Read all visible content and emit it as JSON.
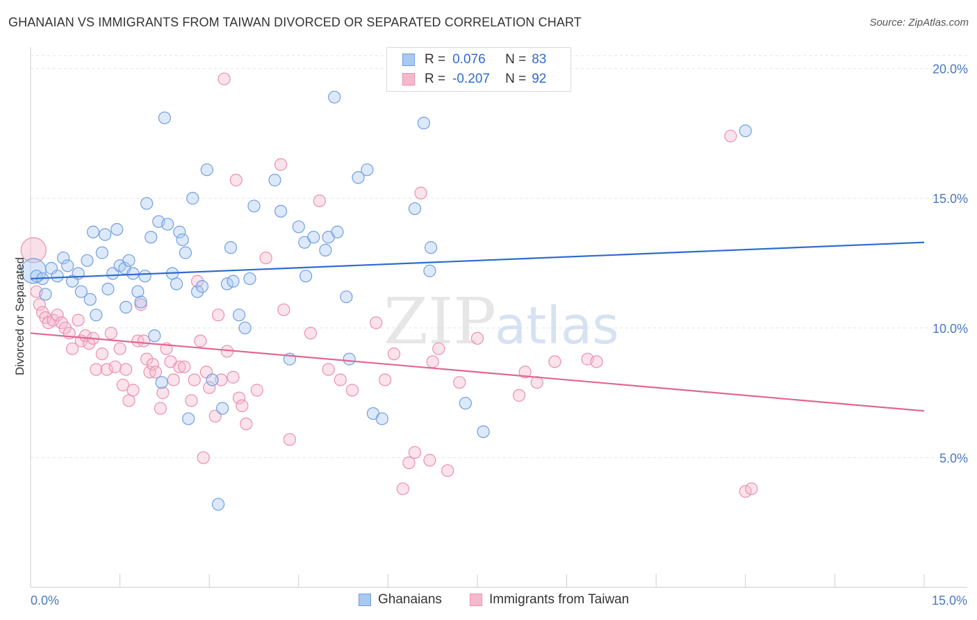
{
  "title": "GHANAIAN VS IMMIGRANTS FROM TAIWAN DIVORCED OR SEPARATED CORRELATION CHART",
  "source": "Source: ZipAtlas.com",
  "legend_top": {
    "rows": [
      {
        "r_label": "R =",
        "r_value": "0.076",
        "n_label": "N =",
        "n_value": "83"
      },
      {
        "r_label": "R =",
        "r_value": "-0.207",
        "n_label": "N =",
        "n_value": "92"
      }
    ]
  },
  "legend_bottom": {
    "items": [
      "Ghanaians",
      "Immigrants from Taiwan"
    ]
  },
  "watermark": {
    "zip": "ZIP",
    "atlas": "atlas"
  },
  "colors": {
    "blue_fill": "#a9c8f2",
    "blue_stroke": "#6f9ee0",
    "blue_line": "#2d6bcf",
    "pink_fill": "#f6b9cc",
    "pink_stroke": "#ea8fae",
    "pink_line": "#e06692",
    "tick_text": "#4a78c2",
    "grid": "#e3e3e3"
  },
  "chart_data": {
    "type": "scatter",
    "title": "GHANAIAN VS IMMIGRANTS FROM TAIWAN DIVORCED OR SEPARATED CORRELATION CHART",
    "xlabel": "",
    "ylabel": "Divorced or Separated",
    "xlim": [
      0,
      15
    ],
    "ylim": [
      0,
      20.5
    ],
    "x_ticks": [
      0,
      15
    ],
    "x_tick_labels": [
      "0.0%",
      "15.0%"
    ],
    "y_ticks": [
      5,
      10,
      15,
      20
    ],
    "y_tick_labels": [
      "5.0%",
      "10.0%",
      "15.0%",
      "20.0%"
    ],
    "grid": true,
    "legend": "top-center",
    "series": [
      {
        "name": "Ghanaians",
        "trend": {
          "x": [
            0,
            15
          ],
          "y": [
            11.9,
            13.3
          ]
        },
        "points": [
          {
            "x": 0.05,
            "y": 12.2,
            "big": true
          },
          {
            "x": 0.1,
            "y": 12.0
          },
          {
            "x": 0.2,
            "y": 11.9
          },
          {
            "x": 0.25,
            "y": 11.3
          },
          {
            "x": 0.35,
            "y": 12.3
          },
          {
            "x": 0.45,
            "y": 12.0
          },
          {
            "x": 0.55,
            "y": 12.7
          },
          {
            "x": 0.62,
            "y": 12.4
          },
          {
            "x": 0.7,
            "y": 11.8
          },
          {
            "x": 0.8,
            "y": 12.1
          },
          {
            "x": 0.85,
            "y": 11.4
          },
          {
            "x": 0.95,
            "y": 12.6
          },
          {
            "x": 1.0,
            "y": 11.1
          },
          {
            "x": 1.05,
            "y": 13.7
          },
          {
            "x": 1.1,
            "y": 10.5
          },
          {
            "x": 1.2,
            "y": 12.9
          },
          {
            "x": 1.25,
            "y": 13.6
          },
          {
            "x": 1.3,
            "y": 11.5
          },
          {
            "x": 1.38,
            "y": 12.1
          },
          {
            "x": 1.45,
            "y": 13.8
          },
          {
            "x": 1.5,
            "y": 12.4
          },
          {
            "x": 1.58,
            "y": 12.3
          },
          {
            "x": 1.6,
            "y": 10.8
          },
          {
            "x": 1.65,
            "y": 12.6
          },
          {
            "x": 1.72,
            "y": 12.1
          },
          {
            "x": 1.8,
            "y": 11.4
          },
          {
            "x": 1.85,
            "y": 11.0
          },
          {
            "x": 1.92,
            "y": 12.0
          },
          {
            "x": 1.95,
            "y": 14.8
          },
          {
            "x": 2.02,
            "y": 13.5
          },
          {
            "x": 2.08,
            "y": 9.7
          },
          {
            "x": 2.15,
            "y": 14.1
          },
          {
            "x": 2.2,
            "y": 7.9
          },
          {
            "x": 2.25,
            "y": 18.1
          },
          {
            "x": 2.3,
            "y": 14.0
          },
          {
            "x": 2.38,
            "y": 12.1
          },
          {
            "x": 2.45,
            "y": 11.7
          },
          {
            "x": 2.5,
            "y": 13.7
          },
          {
            "x": 2.55,
            "y": 13.4
          },
          {
            "x": 2.6,
            "y": 12.9
          },
          {
            "x": 2.65,
            "y": 6.5
          },
          {
            "x": 2.72,
            "y": 15.0
          },
          {
            "x": 2.8,
            "y": 11.4
          },
          {
            "x": 2.88,
            "y": 11.6
          },
          {
            "x": 2.96,
            "y": 16.1
          },
          {
            "x": 3.05,
            "y": 8.0
          },
          {
            "x": 3.15,
            "y": 3.2
          },
          {
            "x": 3.22,
            "y": 6.9
          },
          {
            "x": 3.3,
            "y": 11.7
          },
          {
            "x": 3.36,
            "y": 13.1
          },
          {
            "x": 3.4,
            "y": 11.8
          },
          {
            "x": 3.5,
            "y": 10.5
          },
          {
            "x": 3.6,
            "y": 10.0
          },
          {
            "x": 3.68,
            "y": 11.9
          },
          {
            "x": 3.75,
            "y": 14.7
          },
          {
            "x": 4.1,
            "y": 15.7
          },
          {
            "x": 4.2,
            "y": 14.5
          },
          {
            "x": 4.35,
            "y": 8.8
          },
          {
            "x": 4.5,
            "y": 13.9
          },
          {
            "x": 4.6,
            "y": 13.3
          },
          {
            "x": 4.62,
            "y": 12.0
          },
          {
            "x": 4.75,
            "y": 13.5
          },
          {
            "x": 4.95,
            "y": 13.0
          },
          {
            "x": 5.0,
            "y": 13.5
          },
          {
            "x": 5.1,
            "y": 18.9
          },
          {
            "x": 5.15,
            "y": 13.7
          },
          {
            "x": 5.3,
            "y": 11.2
          },
          {
            "x": 5.35,
            "y": 8.8
          },
          {
            "x": 5.5,
            "y": 15.8
          },
          {
            "x": 5.65,
            "y": 16.1
          },
          {
            "x": 5.75,
            "y": 6.7
          },
          {
            "x": 5.9,
            "y": 6.5
          },
          {
            "x": 6.45,
            "y": 14.6
          },
          {
            "x": 6.6,
            "y": 17.9
          },
          {
            "x": 6.7,
            "y": 12.2
          },
          {
            "x": 6.72,
            "y": 13.1
          },
          {
            "x": 7.3,
            "y": 7.1
          },
          {
            "x": 7.6,
            "y": 6.0
          },
          {
            "x": 12.0,
            "y": 17.6
          }
        ]
      },
      {
        "name": "Immigrants from Taiwan",
        "trend": {
          "x": [
            0,
            15
          ],
          "y": [
            9.8,
            6.8
          ]
        },
        "points": [
          {
            "x": 0.05,
            "y": 13.0,
            "big": true
          },
          {
            "x": 0.1,
            "y": 11.4
          },
          {
            "x": 0.15,
            "y": 10.9
          },
          {
            "x": 0.2,
            "y": 10.6
          },
          {
            "x": 0.25,
            "y": 10.4
          },
          {
            "x": 0.3,
            "y": 10.2
          },
          {
            "x": 0.38,
            "y": 10.3
          },
          {
            "x": 0.45,
            "y": 10.5
          },
          {
            "x": 0.52,
            "y": 10.2
          },
          {
            "x": 0.58,
            "y": 10.0
          },
          {
            "x": 0.65,
            "y": 9.8
          },
          {
            "x": 0.7,
            "y": 9.2
          },
          {
            "x": 0.8,
            "y": 10.3
          },
          {
            "x": 0.85,
            "y": 9.5
          },
          {
            "x": 0.92,
            "y": 9.7
          },
          {
            "x": 0.98,
            "y": 9.4
          },
          {
            "x": 1.05,
            "y": 9.6
          },
          {
            "x": 1.1,
            "y": 8.4
          },
          {
            "x": 1.2,
            "y": 9.0
          },
          {
            "x": 1.28,
            "y": 8.4
          },
          {
            "x": 1.35,
            "y": 9.8
          },
          {
            "x": 1.42,
            "y": 8.5
          },
          {
            "x": 1.5,
            "y": 9.2
          },
          {
            "x": 1.55,
            "y": 7.8
          },
          {
            "x": 1.6,
            "y": 8.4
          },
          {
            "x": 1.65,
            "y": 7.2
          },
          {
            "x": 1.72,
            "y": 7.6
          },
          {
            "x": 1.8,
            "y": 9.5
          },
          {
            "x": 1.85,
            "y": 10.9
          },
          {
            "x": 1.9,
            "y": 9.5
          },
          {
            "x": 1.95,
            "y": 8.8
          },
          {
            "x": 2.0,
            "y": 8.3
          },
          {
            "x": 2.05,
            "y": 8.6
          },
          {
            "x": 2.1,
            "y": 8.3
          },
          {
            "x": 2.18,
            "y": 6.9
          },
          {
            "x": 2.22,
            "y": 7.5
          },
          {
            "x": 2.28,
            "y": 9.2
          },
          {
            "x": 2.35,
            "y": 8.7
          },
          {
            "x": 2.4,
            "y": 8.0
          },
          {
            "x": 2.5,
            "y": 8.5
          },
          {
            "x": 2.58,
            "y": 8.5
          },
          {
            "x": 2.7,
            "y": 7.2
          },
          {
            "x": 2.75,
            "y": 8.0
          },
          {
            "x": 2.8,
            "y": 11.8
          },
          {
            "x": 2.85,
            "y": 9.5
          },
          {
            "x": 2.9,
            "y": 5.0
          },
          {
            "x": 2.95,
            "y": 8.3
          },
          {
            "x": 3.0,
            "y": 7.7
          },
          {
            "x": 3.1,
            "y": 6.6
          },
          {
            "x": 3.15,
            "y": 10.5
          },
          {
            "x": 3.2,
            "y": 8.0
          },
          {
            "x": 3.25,
            "y": 19.6
          },
          {
            "x": 3.3,
            "y": 9.1
          },
          {
            "x": 3.4,
            "y": 8.1
          },
          {
            "x": 3.45,
            "y": 15.7
          },
          {
            "x": 3.5,
            "y": 7.3
          },
          {
            "x": 3.55,
            "y": 7.0
          },
          {
            "x": 3.62,
            "y": 6.3
          },
          {
            "x": 3.8,
            "y": 7.6
          },
          {
            "x": 3.95,
            "y": 12.7
          },
          {
            "x": 4.2,
            "y": 16.3
          },
          {
            "x": 4.25,
            "y": 10.7
          },
          {
            "x": 4.35,
            "y": 5.7
          },
          {
            "x": 4.7,
            "y": 9.8
          },
          {
            "x": 4.85,
            "y": 14.9
          },
          {
            "x": 5.0,
            "y": 8.4
          },
          {
            "x": 5.2,
            "y": 8.0
          },
          {
            "x": 5.4,
            "y": 7.6
          },
          {
            "x": 5.8,
            "y": 10.2
          },
          {
            "x": 5.95,
            "y": 8.0
          },
          {
            "x": 6.1,
            "y": 9.0
          },
          {
            "x": 6.25,
            "y": 3.8
          },
          {
            "x": 6.35,
            "y": 4.8
          },
          {
            "x": 6.45,
            "y": 5.2
          },
          {
            "x": 6.55,
            "y": 15.2
          },
          {
            "x": 6.7,
            "y": 4.9
          },
          {
            "x": 6.75,
            "y": 8.7
          },
          {
            "x": 6.85,
            "y": 9.2
          },
          {
            "x": 7.0,
            "y": 4.5
          },
          {
            "x": 7.2,
            "y": 7.9
          },
          {
            "x": 7.5,
            "y": 9.6
          },
          {
            "x": 8.2,
            "y": 7.4
          },
          {
            "x": 8.3,
            "y": 8.3
          },
          {
            "x": 8.5,
            "y": 7.9
          },
          {
            "x": 8.8,
            "y": 8.7
          },
          {
            "x": 9.35,
            "y": 8.8
          },
          {
            "x": 9.5,
            "y": 8.7
          },
          {
            "x": 11.75,
            "y": 17.4
          },
          {
            "x": 12.0,
            "y": 3.7
          },
          {
            "x": 12.1,
            "y": 3.8
          }
        ]
      }
    ]
  }
}
